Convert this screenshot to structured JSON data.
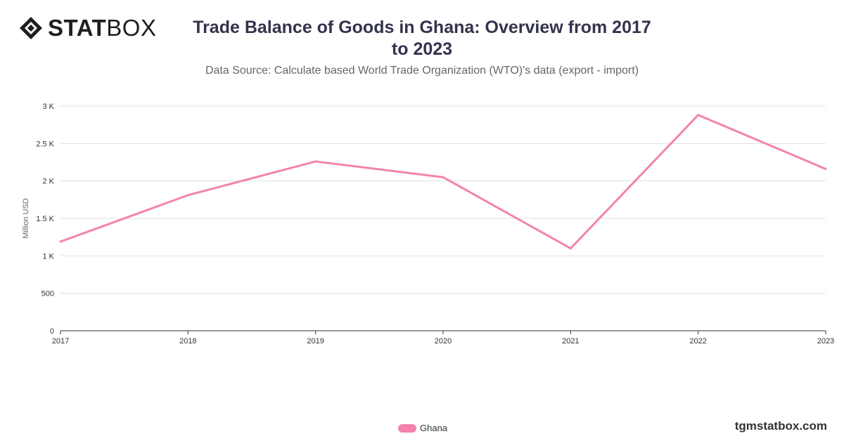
{
  "logo": {
    "bold": "STAT",
    "light": "BOX",
    "icon": "statbox-diamond-icon"
  },
  "chart_data": {
    "type": "line",
    "title": "Trade Balance of Goods in Ghana: Overview from 2017 to 2023",
    "subtitle": "Data Source: Calculate based World Trade Organization (WTO)'s data (export - import)",
    "xlabel": "",
    "ylabel": "Million USD",
    "x": [
      "2017",
      "2018",
      "2019",
      "2020",
      "2021",
      "2022",
      "2023"
    ],
    "series": [
      {
        "name": "Ghana",
        "color": "#f383ad",
        "values": [
          1190,
          1810,
          2260,
          2050,
          1100,
          2880,
          2160
        ]
      }
    ],
    "ylim": [
      0,
      3000
    ],
    "yticks": [
      0,
      500,
      1000,
      1500,
      2000,
      2500,
      3000
    ],
    "ytick_labels": [
      "0",
      "500",
      "1 K",
      "1.5 K",
      "2 K",
      "2.5 K",
      "3 K"
    ],
    "grid": true,
    "legend": "bottom-center"
  },
  "footer": {
    "brand": "tgmstatbox.com"
  }
}
